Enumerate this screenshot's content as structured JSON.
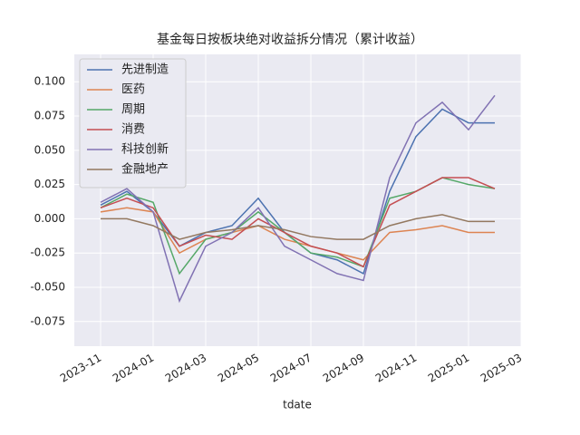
{
  "chart_data": {
    "type": "line",
    "title": "基金每日按板块绝对收益拆分情况（累计收益）",
    "x_label": "tdate",
    "x": [
      "2023-11",
      "2023-12",
      "2024-01",
      "2024-02",
      "2024-03",
      "2024-04",
      "2024-05",
      "2024-06",
      "2024-07",
      "2024-08",
      "2024-09",
      "2024-10",
      "2024-11",
      "2024-12",
      "2025-01",
      "2025-02"
    ],
    "xlim": [
      "2023-10",
      "2025-03"
    ],
    "xticks": [
      "2023-11",
      "2024-01",
      "2024-03",
      "2024-05",
      "2024-07",
      "2024-09",
      "2024-11",
      "2025-01",
      "2025-03"
    ],
    "ylim": [
      -0.093,
      0.12
    ],
    "yticks": [
      {
        "value": -0.075,
        "label": "-0.075"
      },
      {
        "value": -0.05,
        "label": "-0.050"
      },
      {
        "value": -0.025,
        "label": "-0.025"
      },
      {
        "value": 0,
        "label": "0.000"
      },
      {
        "value": 0.025,
        "label": "0.025"
      },
      {
        "value": 0.05,
        "label": "0.050"
      },
      {
        "value": 0.075,
        "label": "0.075"
      },
      {
        "value": 0.1,
        "label": "0.100"
      }
    ],
    "grid": true,
    "legend": "upper left",
    "series": [
      {
        "name": "先进制造",
        "color": "#4c72b0",
        "values": [
          0.01,
          0.02,
          0.005,
          -0.02,
          -0.01,
          -0.005,
          0.015,
          -0.01,
          -0.025,
          -0.03,
          -0.04,
          0.02,
          0.06,
          0.08,
          0.07,
          0.07
        ]
      },
      {
        "name": "医药",
        "color": "#dd8452",
        "values": [
          0.005,
          0.008,
          0.005,
          -0.025,
          -0.015,
          -0.01,
          -0.005,
          -0.015,
          -0.02,
          -0.025,
          -0.03,
          -0.01,
          -0.008,
          -0.005,
          -0.01,
          -0.01
        ]
      },
      {
        "name": "周期",
        "color": "#55a868",
        "values": [
          0.008,
          0.018,
          0.012,
          -0.04,
          -0.015,
          -0.01,
          0.005,
          -0.01,
          -0.025,
          -0.028,
          -0.035,
          0.015,
          0.02,
          0.03,
          0.025,
          0.022
        ]
      },
      {
        "name": "消费",
        "color": "#c44e52",
        "values": [
          0.008,
          0.015,
          0.008,
          -0.02,
          -0.012,
          -0.015,
          0,
          -0.01,
          -0.02,
          -0.025,
          -0.035,
          0.01,
          0.02,
          0.03,
          0.03,
          0.022
        ]
      },
      {
        "name": "科技创新",
        "color": "#8172b3",
        "values": [
          0.012,
          0.022,
          0.005,
          -0.06,
          -0.02,
          -0.01,
          0.008,
          -0.02,
          -0.03,
          -0.04,
          -0.045,
          0.03,
          0.07,
          0.085,
          0.065,
          0.09
        ]
      },
      {
        "name": "金融地产",
        "color": "#937860",
        "values": [
          0,
          0,
          -0.005,
          -0.015,
          -0.01,
          -0.008,
          -0.005,
          -0.008,
          -0.013,
          -0.015,
          -0.015,
          -0.005,
          0,
          0.003,
          -0.002,
          -0.002
        ]
      }
    ]
  }
}
